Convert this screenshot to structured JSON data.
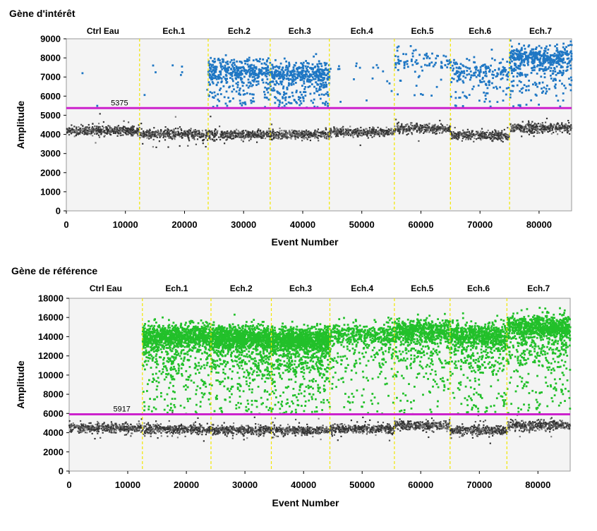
{
  "chart_data": [
    {
      "type": "scatter",
      "title": "Gène d'intérêt",
      "xlabel": "Event Number",
      "ylabel": "Amplitude",
      "xlim": [
        0,
        85500
      ],
      "ylim": [
        0,
        9000
      ],
      "x_ticks": [
        0,
        10000,
        20000,
        30000,
        40000,
        50000,
        60000,
        70000,
        80000
      ],
      "y_ticks": [
        0,
        1000,
        2000,
        3000,
        4000,
        5000,
        6000,
        7000,
        8000,
        9000
      ],
      "threshold": {
        "value": 5375,
        "label": "5375",
        "color": "#cc22cc"
      },
      "grid": false,
      "legend": "none",
      "positive_color": "#1f77c4",
      "negative_color": "#555555",
      "wells": [
        {
          "label": "Ctrl Eau",
          "start": 0,
          "end": 12400,
          "negative_mean": 4200,
          "positive_mean": null,
          "positive_count": 2
        },
        {
          "label": "Ech.1",
          "start": 12400,
          "end": 24000,
          "negative_mean": 4020,
          "positive_mean": 7500,
          "positive_count": 8
        },
        {
          "label": "Ech.2",
          "start": 24000,
          "end": 34500,
          "negative_mean": 4000,
          "positive_mean": 7350,
          "positive_count": 420
        },
        {
          "label": "Ech.3",
          "start": 34500,
          "end": 44500,
          "negative_mean": 3980,
          "positive_mean": 7180,
          "positive_count": 480
        },
        {
          "label": "Ech.4",
          "start": 44500,
          "end": 55500,
          "negative_mean": 4120,
          "positive_mean": 7400,
          "positive_count": 18
        },
        {
          "label": "Ech.5",
          "start": 55500,
          "end": 65000,
          "negative_mean": 4320,
          "positive_mean": 7850,
          "positive_count": 90
        },
        {
          "label": "Ech.6",
          "start": 65000,
          "end": 75000,
          "negative_mean": 3950,
          "positive_mean": 7300,
          "positive_count": 200
        },
        {
          "label": "Ech.7",
          "start": 75000,
          "end": 85500,
          "negative_mean": 4350,
          "positive_mean": 8050,
          "positive_count": 520
        }
      ]
    },
    {
      "type": "scatter",
      "title": "Gène de référence",
      "xlabel": "Event Number",
      "ylabel": "Amplitude",
      "xlim": [
        0,
        85500
      ],
      "ylim": [
        0,
        18000
      ],
      "x_ticks": [
        0,
        10000,
        20000,
        30000,
        40000,
        50000,
        60000,
        70000,
        80000
      ],
      "y_ticks": [
        0,
        2000,
        4000,
        6000,
        8000,
        10000,
        12000,
        14000,
        16000,
        18000
      ],
      "threshold": {
        "value": 5917,
        "label": "5917",
        "color": "#cc22cc"
      },
      "grid": false,
      "legend": "none",
      "positive_color": "#22c02a",
      "negative_color": "#555555",
      "wells": [
        {
          "label": "Ctrl Eau",
          "start": 0,
          "end": 12500,
          "negative_mean": 4500,
          "positive_mean": null,
          "positive_count": 0
        },
        {
          "label": "Ech.1",
          "start": 12500,
          "end": 24200,
          "negative_mean": 4350,
          "positive_mean": 14000,
          "positive_count": 1200
        },
        {
          "label": "Ech.2",
          "start": 24200,
          "end": 34500,
          "negative_mean": 4300,
          "positive_mean": 13900,
          "positive_count": 1300
        },
        {
          "label": "Ech.3",
          "start": 34500,
          "end": 44500,
          "negative_mean": 4250,
          "positive_mean": 13700,
          "positive_count": 1400
        },
        {
          "label": "Ech.4",
          "start": 44500,
          "end": 55500,
          "negative_mean": 4400,
          "positive_mean": 14300,
          "positive_count": 500
        },
        {
          "label": "Ech.5",
          "start": 55500,
          "end": 65000,
          "negative_mean": 4750,
          "positive_mean": 14600,
          "positive_count": 700
        },
        {
          "label": "Ech.6",
          "start": 65000,
          "end": 74700,
          "negative_mean": 4250,
          "positive_mean": 14100,
          "positive_count": 800
        },
        {
          "label": "Ech.7",
          "start": 74700,
          "end": 85500,
          "negative_mean": 4750,
          "positive_mean": 15000,
          "positive_count": 1000
        }
      ]
    }
  ]
}
